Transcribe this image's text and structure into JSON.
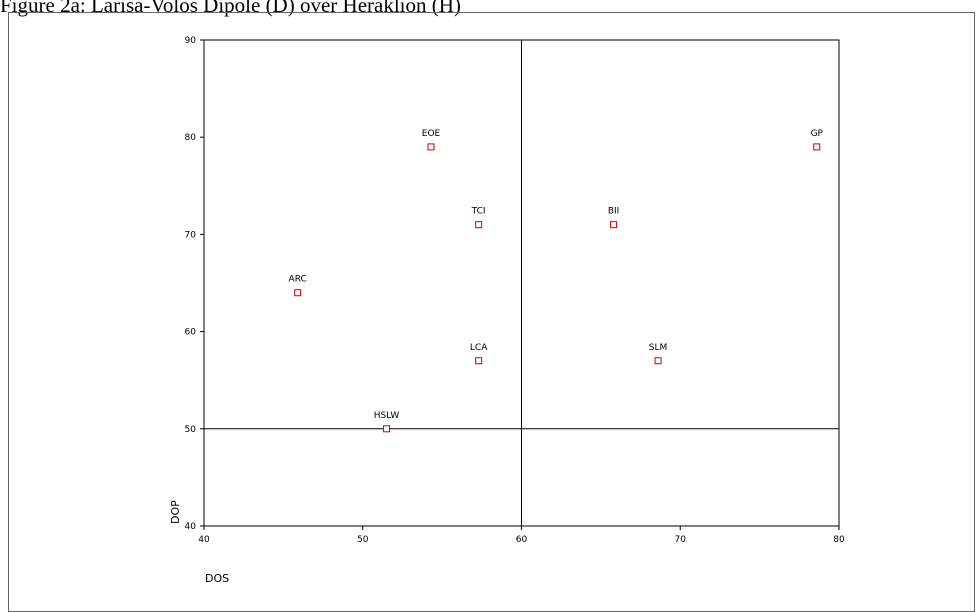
{
  "caption": "Figure 2a: Larisa-Volos Dipole (D) over Heraklion (H)",
  "chart_data": {
    "type": "scatter",
    "title": "",
    "xlabel": "DOS",
    "ylabel": "DOP",
    "xlim": [
      40,
      80
    ],
    "ylim": [
      40,
      90
    ],
    "xticks": [
      40,
      50,
      60,
      70,
      80
    ],
    "yticks": [
      40,
      50,
      60,
      70,
      80,
      90
    ],
    "reference_lines": {
      "x": 60,
      "y": 50
    },
    "marker_color": "#cc0000",
    "points": [
      {
        "label": "EOE",
        "x": 54.3,
        "y": 79
      },
      {
        "label": "GP",
        "x": 78.6,
        "y": 79
      },
      {
        "label": "TCI",
        "x": 57.3,
        "y": 71
      },
      {
        "label": "BII",
        "x": 65.8,
        "y": 71
      },
      {
        "label": "ARC",
        "x": 45.9,
        "y": 64
      },
      {
        "label": "LCA",
        "x": 57.3,
        "y": 57
      },
      {
        "label": "SLM",
        "x": 68.6,
        "y": 57
      },
      {
        "label": "HSLW",
        "x": 51.5,
        "y": 50
      }
    ]
  }
}
